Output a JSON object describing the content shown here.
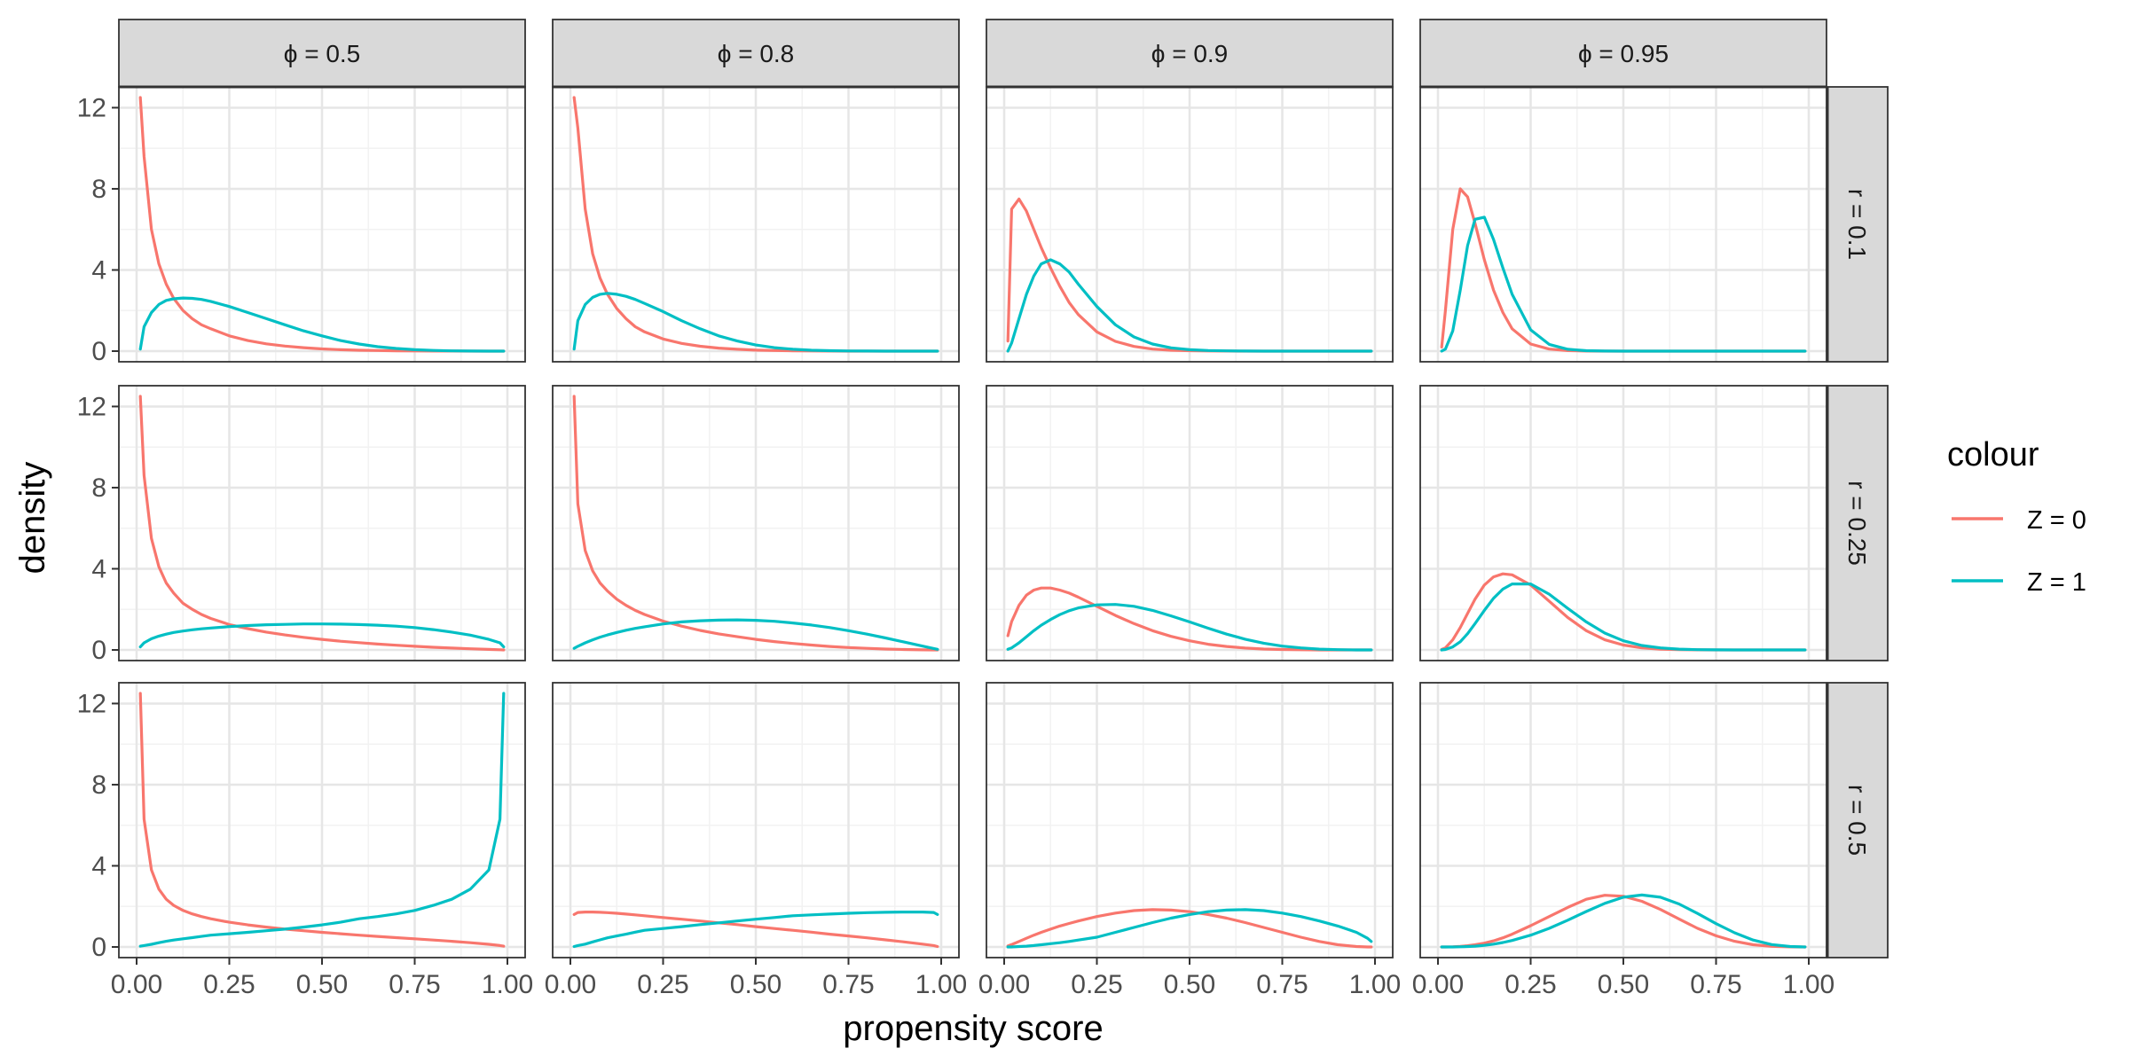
{
  "chart_data": {
    "type": "line",
    "layout": "facet-grid",
    "title": "",
    "xlabel": "propensity score",
    "ylabel": "density",
    "xlim": [
      0,
      1
    ],
    "ylim": [
      0,
      12.5
    ],
    "x_ticks": [
      "0.00",
      "0.25",
      "0.50",
      "0.75",
      "1.00"
    ],
    "y_ticks": [
      "0",
      "4",
      "8",
      "12"
    ],
    "column_facets": [
      "ϕ = 0.5",
      "ϕ = 0.8",
      "ϕ = 0.9",
      "ϕ = 0.95"
    ],
    "row_facets": [
      "r = 0.1",
      "r = 0.25",
      "r = 0.5"
    ],
    "legend": {
      "title": "colour",
      "position": "right",
      "entries": [
        {
          "label": "Z = 0",
          "color": "#F8766D"
        },
        {
          "label": "Z = 1",
          "color": "#00BFC4"
        }
      ]
    },
    "x": [
      0.01,
      0.02,
      0.04,
      0.06,
      0.08,
      0.1,
      0.125,
      0.15,
      0.175,
      0.2,
      0.25,
      0.3,
      0.35,
      0.4,
      0.45,
      0.5,
      0.55,
      0.6,
      0.65,
      0.7,
      0.75,
      0.8,
      0.85,
      0.9,
      0.95,
      0.98,
      0.99
    ],
    "series": [
      {
        "row": 0,
        "col": 0,
        "name": "Z = 0",
        "values": [
          12.8,
          9.6,
          6.0,
          4.3,
          3.3,
          2.6,
          2.0,
          1.6,
          1.3,
          1.1,
          0.75,
          0.52,
          0.36,
          0.25,
          0.17,
          0.11,
          0.07,
          0.045,
          0.03,
          0.018,
          0.01,
          0.006,
          0.003,
          0.001,
          0,
          0,
          0
        ]
      },
      {
        "row": 0,
        "col": 0,
        "name": "Z = 1",
        "values": [
          0.1,
          1.2,
          1.9,
          2.3,
          2.5,
          2.58,
          2.62,
          2.6,
          2.55,
          2.45,
          2.2,
          1.9,
          1.6,
          1.3,
          1.0,
          0.75,
          0.52,
          0.35,
          0.22,
          0.13,
          0.07,
          0.035,
          0.015,
          0.005,
          0,
          0,
          0
        ]
      },
      {
        "row": 0,
        "col": 1,
        "name": "Z = 0",
        "values": [
          12.8,
          11.0,
          7.0,
          4.8,
          3.6,
          2.8,
          2.1,
          1.6,
          1.2,
          0.95,
          0.6,
          0.38,
          0.24,
          0.15,
          0.09,
          0.05,
          0.03,
          0.016,
          0.008,
          0.004,
          0.002,
          0.001,
          0,
          0,
          0,
          0,
          0
        ]
      },
      {
        "row": 0,
        "col": 1,
        "name": "Z = 1",
        "values": [
          0.1,
          1.5,
          2.3,
          2.65,
          2.8,
          2.85,
          2.8,
          2.7,
          2.55,
          2.35,
          1.95,
          1.5,
          1.1,
          0.75,
          0.5,
          0.3,
          0.17,
          0.09,
          0.045,
          0.02,
          0.008,
          0.003,
          0.001,
          0,
          0,
          0,
          0
        ]
      },
      {
        "row": 0,
        "col": 2,
        "name": "Z = 0",
        "values": [
          0.5,
          7.0,
          7.5,
          6.9,
          6.0,
          5.1,
          4.1,
          3.2,
          2.4,
          1.8,
          0.95,
          0.48,
          0.23,
          0.1,
          0.045,
          0.02,
          0.008,
          0.003,
          0.001,
          0,
          0,
          0,
          0,
          0,
          0,
          0,
          0
        ]
      },
      {
        "row": 0,
        "col": 2,
        "name": "Z = 1",
        "values": [
          0.0,
          0.4,
          1.6,
          2.8,
          3.7,
          4.3,
          4.5,
          4.3,
          3.9,
          3.3,
          2.2,
          1.3,
          0.7,
          0.35,
          0.16,
          0.07,
          0.03,
          0.012,
          0.004,
          0.001,
          0,
          0,
          0,
          0,
          0,
          0,
          0
        ]
      },
      {
        "row": 0,
        "col": 3,
        "name": "Z = 0",
        "values": [
          0.2,
          2.0,
          6.0,
          8.0,
          7.6,
          6.3,
          4.5,
          3.0,
          1.9,
          1.1,
          0.35,
          0.1,
          0.025,
          0.006,
          0.001,
          0,
          0,
          0,
          0,
          0,
          0,
          0,
          0,
          0,
          0,
          0,
          0
        ]
      },
      {
        "row": 0,
        "col": 3,
        "name": "Z = 1",
        "values": [
          0.0,
          0.1,
          1.0,
          3.0,
          5.2,
          6.5,
          6.6,
          5.5,
          4.1,
          2.8,
          1.05,
          0.33,
          0.09,
          0.02,
          0.004,
          0.001,
          0,
          0,
          0,
          0,
          0,
          0,
          0,
          0,
          0,
          0,
          0
        ]
      },
      {
        "row": 1,
        "col": 0,
        "name": "Z = 0",
        "values": [
          12.8,
          8.6,
          5.5,
          4.1,
          3.3,
          2.8,
          2.3,
          2.0,
          1.75,
          1.55,
          1.25,
          1.05,
          0.88,
          0.74,
          0.62,
          0.52,
          0.43,
          0.36,
          0.29,
          0.23,
          0.18,
          0.13,
          0.09,
          0.055,
          0.025,
          0.01,
          0
        ]
      },
      {
        "row": 1,
        "col": 0,
        "name": "Z = 1",
        "values": [
          0.15,
          0.35,
          0.55,
          0.68,
          0.78,
          0.86,
          0.93,
          0.99,
          1.04,
          1.08,
          1.15,
          1.2,
          1.24,
          1.26,
          1.28,
          1.28,
          1.27,
          1.25,
          1.22,
          1.17,
          1.1,
          1.0,
          0.88,
          0.73,
          0.52,
          0.35,
          0.15
        ]
      },
      {
        "row": 1,
        "col": 1,
        "name": "Z = 0",
        "values": [
          12.8,
          7.2,
          4.9,
          3.9,
          3.3,
          2.9,
          2.5,
          2.2,
          1.95,
          1.75,
          1.42,
          1.17,
          0.96,
          0.79,
          0.65,
          0.52,
          0.41,
          0.32,
          0.24,
          0.17,
          0.12,
          0.08,
          0.045,
          0.02,
          0.006,
          0.001,
          0
        ]
      },
      {
        "row": 1,
        "col": 1,
        "name": "Z = 1",
        "values": [
          0.08,
          0.18,
          0.35,
          0.5,
          0.63,
          0.74,
          0.86,
          0.97,
          1.06,
          1.14,
          1.28,
          1.38,
          1.44,
          1.47,
          1.48,
          1.46,
          1.41,
          1.33,
          1.23,
          1.1,
          0.95,
          0.78,
          0.59,
          0.39,
          0.19,
          0.07,
          0.03
        ]
      },
      {
        "row": 1,
        "col": 2,
        "name": "Z = 0",
        "values": [
          0.7,
          1.4,
          2.2,
          2.7,
          2.95,
          3.05,
          3.05,
          2.95,
          2.8,
          2.6,
          2.15,
          1.7,
          1.3,
          0.95,
          0.67,
          0.45,
          0.28,
          0.17,
          0.09,
          0.045,
          0.02,
          0.008,
          0.002,
          0,
          0,
          0,
          0
        ]
      },
      {
        "row": 1,
        "col": 2,
        "name": "Z = 1",
        "values": [
          0.03,
          0.1,
          0.35,
          0.65,
          0.95,
          1.22,
          1.5,
          1.74,
          1.93,
          2.07,
          2.22,
          2.24,
          2.15,
          1.95,
          1.68,
          1.38,
          1.07,
          0.78,
          0.53,
          0.33,
          0.19,
          0.1,
          0.04,
          0.013,
          0.002,
          0,
          0
        ]
      },
      {
        "row": 1,
        "col": 3,
        "name": "Z = 0",
        "values": [
          0.02,
          0.1,
          0.5,
          1.1,
          1.8,
          2.5,
          3.2,
          3.6,
          3.75,
          3.7,
          3.2,
          2.4,
          1.6,
          0.95,
          0.5,
          0.24,
          0.1,
          0.04,
          0.013,
          0.004,
          0.001,
          0,
          0,
          0,
          0,
          0,
          0
        ]
      },
      {
        "row": 1,
        "col": 3,
        "name": "Z = 1",
        "values": [
          0.0,
          0.02,
          0.15,
          0.4,
          0.8,
          1.3,
          1.95,
          2.55,
          3.0,
          3.25,
          3.25,
          2.75,
          2.05,
          1.38,
          0.83,
          0.45,
          0.22,
          0.1,
          0.04,
          0.014,
          0.004,
          0.001,
          0,
          0,
          0,
          0,
          0
        ]
      },
      {
        "row": 2,
        "col": 0,
        "name": "Z = 0",
        "values": [
          12.8,
          6.3,
          3.8,
          2.85,
          2.35,
          2.05,
          1.8,
          1.63,
          1.5,
          1.39,
          1.22,
          1.09,
          0.98,
          0.88,
          0.8,
          0.72,
          0.65,
          0.58,
          0.52,
          0.46,
          0.4,
          0.34,
          0.28,
          0.21,
          0.13,
          0.07,
          0.04
        ]
      },
      {
        "row": 2,
        "col": 0,
        "name": "Z = 1",
        "values": [
          0.04,
          0.07,
          0.13,
          0.21,
          0.28,
          0.34,
          0.4,
          0.46,
          0.52,
          0.58,
          0.65,
          0.72,
          0.8,
          0.88,
          0.98,
          1.09,
          1.22,
          1.39,
          1.5,
          1.63,
          1.8,
          2.05,
          2.35,
          2.85,
          3.8,
          6.3,
          12.8
        ]
      },
      {
        "row": 2,
        "col": 1,
        "name": "Z = 0",
        "values": [
          1.6,
          1.7,
          1.72,
          1.72,
          1.71,
          1.69,
          1.66,
          1.62,
          1.58,
          1.54,
          1.45,
          1.37,
          1.28,
          1.19,
          1.1,
          1.0,
          0.91,
          0.82,
          0.73,
          0.63,
          0.54,
          0.45,
          0.35,
          0.25,
          0.14,
          0.07,
          0.02
        ]
      },
      {
        "row": 2,
        "col": 1,
        "name": "Z = 1",
        "values": [
          0.02,
          0.07,
          0.14,
          0.25,
          0.35,
          0.45,
          0.54,
          0.63,
          0.73,
          0.82,
          0.91,
          1.0,
          1.1,
          1.19,
          1.28,
          1.37,
          1.45,
          1.54,
          1.58,
          1.62,
          1.66,
          1.69,
          1.71,
          1.72,
          1.72,
          1.7,
          1.6
        ]
      },
      {
        "row": 2,
        "col": 2,
        "name": "Z = 0",
        "values": [
          0.05,
          0.12,
          0.27,
          0.43,
          0.58,
          0.72,
          0.88,
          1.03,
          1.16,
          1.28,
          1.5,
          1.67,
          1.79,
          1.84,
          1.82,
          1.74,
          1.6,
          1.42,
          1.2,
          0.96,
          0.72,
          0.48,
          0.27,
          0.11,
          0.02,
          0,
          0
        ]
      },
      {
        "row": 2,
        "col": 2,
        "name": "Z = 1",
        "values": [
          0,
          0,
          0.02,
          0.04,
          0.07,
          0.11,
          0.16,
          0.21,
          0.27,
          0.34,
          0.48,
          0.72,
          0.96,
          1.2,
          1.42,
          1.6,
          1.74,
          1.82,
          1.84,
          1.79,
          1.67,
          1.5,
          1.28,
          1.03,
          0.72,
          0.43,
          0.27
        ]
      },
      {
        "row": 2,
        "col": 3,
        "name": "Z = 0",
        "values": [
          0,
          0.002,
          0.01,
          0.03,
          0.06,
          0.11,
          0.19,
          0.3,
          0.45,
          0.63,
          1.05,
          1.5,
          1.95,
          2.35,
          2.55,
          2.5,
          2.25,
          1.85,
          1.38,
          0.92,
          0.55,
          0.28,
          0.11,
          0.03,
          0.004,
          0,
          0
        ]
      },
      {
        "row": 2,
        "col": 3,
        "name": "Z = 1",
        "values": [
          0,
          0,
          0.002,
          0.008,
          0.02,
          0.04,
          0.08,
          0.14,
          0.22,
          0.32,
          0.58,
          0.92,
          1.32,
          1.75,
          2.15,
          2.45,
          2.56,
          2.45,
          2.12,
          1.65,
          1.15,
          0.7,
          0.34,
          0.12,
          0.02,
          0.004,
          0.001
        ]
      }
    ]
  }
}
